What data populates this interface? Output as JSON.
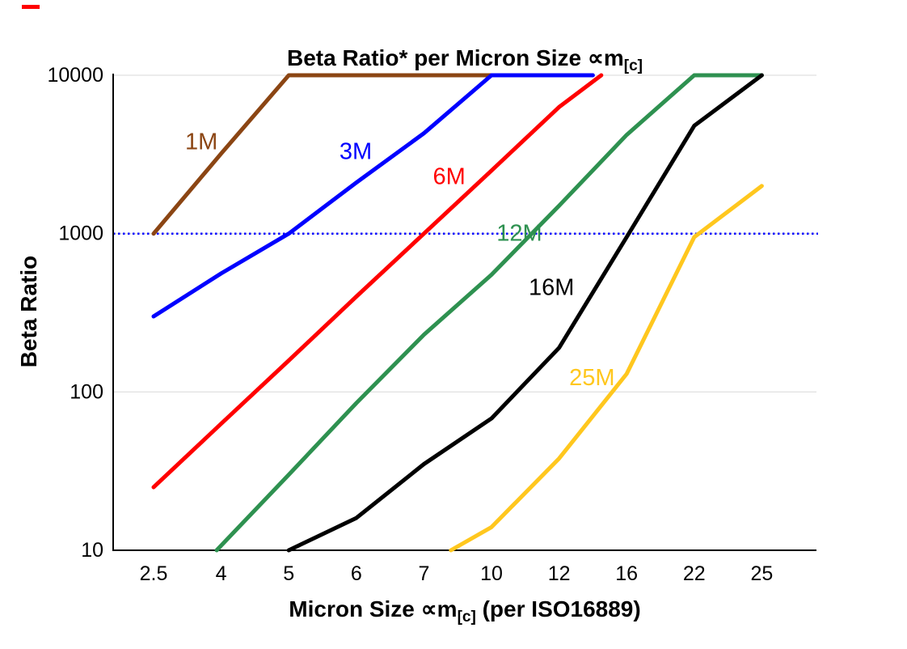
{
  "page": {
    "background": "#ffffff",
    "corner_mark_color": "#ff0000"
  },
  "chart_data": {
    "type": "line",
    "title": {
      "prefix": "Beta Ratio* per Micron Size ",
      "symbol": "∝m",
      "sub": "[c]"
    },
    "xlabel": {
      "prefix": "Micron Size ",
      "symbol": "∝m",
      "sub": "[c]",
      "suffix": " (per ISO16889)"
    },
    "ylabel": "Beta Ratio",
    "x_scale": "categorical",
    "y_scale": "log",
    "ylim": [
      10,
      10000
    ],
    "grid": {
      "show": true,
      "color": "#d9d9d9",
      "vertical": false
    },
    "categories": [
      2.5,
      4,
      5,
      6,
      7,
      10,
      12,
      16,
      22,
      25
    ],
    "x_tick_labels": [
      "2.5",
      "4",
      "5",
      "6",
      "7",
      "10",
      "12",
      "16",
      "22",
      "25"
    ],
    "y_ticks": [
      10,
      100,
      1000,
      10000
    ],
    "y_tick_labels": [
      "10",
      "100",
      "1000",
      "10000"
    ],
    "reference_line": {
      "value": 1000,
      "color": "#0000ff",
      "style": "dotted"
    },
    "series": [
      {
        "name": "1M",
        "color": "#8B4513",
        "points": [
          [
            2.5,
            1000
          ],
          [
            4,
            3200
          ],
          [
            5,
            10000
          ],
          [
            10,
            10000
          ]
        ],
        "label_anchor": [
          3.2,
          3400
        ]
      },
      {
        "name": "3M",
        "color": "#0000FF",
        "points": [
          [
            2.5,
            300
          ],
          [
            4,
            560
          ],
          [
            5,
            1000
          ],
          [
            6,
            2100
          ],
          [
            7,
            4300
          ],
          [
            10,
            10000
          ],
          [
            14,
            10000
          ]
        ],
        "label_anchor": [
          5.75,
          2950
        ]
      },
      {
        "name": "6M",
        "color": "#FF0000",
        "points": [
          [
            2.5,
            25
          ],
          [
            4,
            63
          ],
          [
            5,
            158
          ],
          [
            6,
            400
          ],
          [
            7,
            1000
          ],
          [
            10,
            2500
          ],
          [
            12,
            6300
          ],
          [
            14.5,
            10000
          ]
        ],
        "label_anchor": [
          7.4,
          2050
        ]
      },
      {
        "name": "12M",
        "color": "#2E9150",
        "points": [
          [
            3.9,
            10
          ],
          [
            5,
            30
          ],
          [
            6,
            85
          ],
          [
            7,
            230
          ],
          [
            10,
            550
          ],
          [
            12,
            1500
          ],
          [
            16,
            4200
          ],
          [
            22,
            10000
          ],
          [
            25,
            10000
          ]
        ],
        "label_anchor": [
          10.15,
          900
        ]
      },
      {
        "name": "16M",
        "color": "#000000",
        "points": [
          [
            5,
            10
          ],
          [
            6,
            16
          ],
          [
            7,
            35
          ],
          [
            10,
            68
          ],
          [
            12,
            190
          ],
          [
            16,
            950
          ],
          [
            22,
            4800
          ],
          [
            25,
            10000
          ]
        ],
        "label_anchor": [
          11.1,
          410
        ]
      },
      {
        "name": "25M",
        "color": "#FFC71E",
        "points": [
          [
            8.2,
            10
          ],
          [
            10,
            14
          ],
          [
            12,
            38
          ],
          [
            16,
            130
          ],
          [
            22,
            950
          ],
          [
            25,
            2000
          ]
        ],
        "label_anchor": [
          12.6,
          110
        ]
      }
    ]
  }
}
